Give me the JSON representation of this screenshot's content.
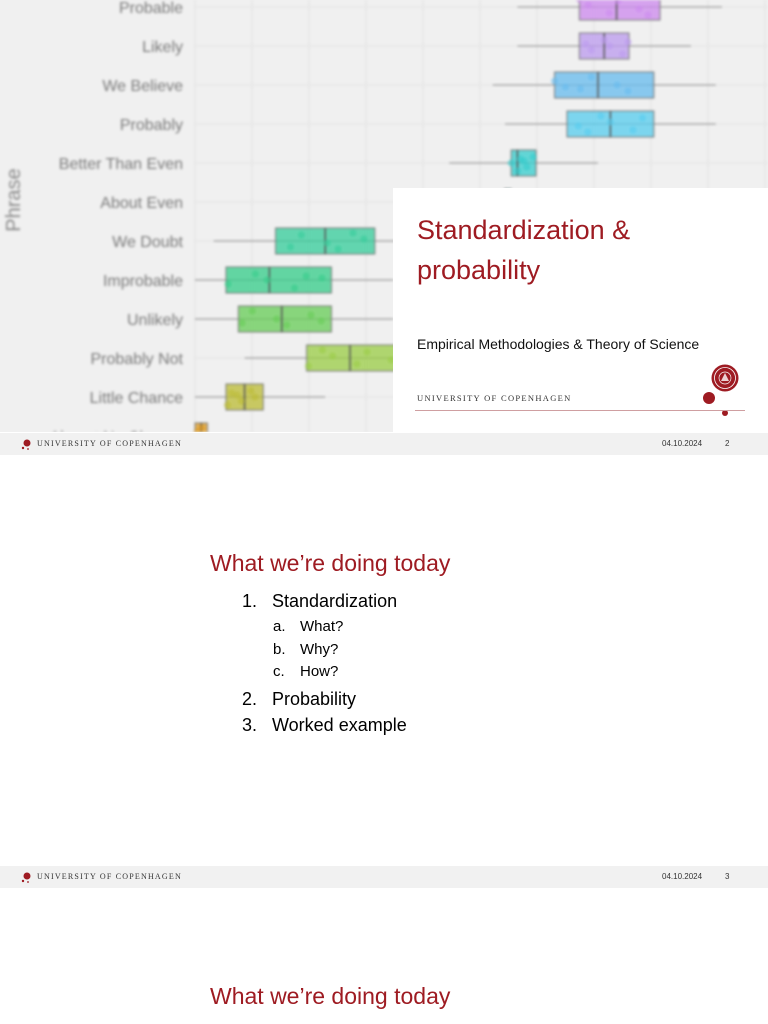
{
  "slides": [
    {
      "title": "Standardization & probability",
      "subtitle": "Empirical Methodologies & Theory of Science",
      "university": "UNIVERSITY OF COPENHAGEN"
    },
    {
      "heading": "What we’re doing today",
      "agenda": [
        {
          "num": "1.",
          "label": "Standardization",
          "sub": [
            {
              "letter": "a.",
              "label": "What?"
            },
            {
              "letter": "b.",
              "label": "Why?"
            },
            {
              "letter": "c.",
              "label": "How?"
            }
          ]
        },
        {
          "num": "2.",
          "label": "Probability"
        },
        {
          "num": "3.",
          "label": "Worked example"
        }
      ]
    },
    {
      "heading": "What we’re doing today"
    }
  ],
  "footers": [
    {
      "university": "UNIVERSITY OF COPENHAGEN",
      "date": "04.10.2024",
      "page": "2"
    },
    {
      "university": "UNIVERSITY OF COPENHAGEN",
      "date": "04.10.2024",
      "page": "3"
    }
  ],
  "colors": {
    "brand_red": "#9e1b22",
    "footer_bg": "#f1f1f1"
  },
  "chart_data": {
    "type": "boxplot",
    "ylabel": "Phrase",
    "categories": [
      "Probable",
      "Likely",
      "We Believe",
      "Probably",
      "Better Than Even",
      "About Even",
      "We Doubt",
      "Improbable",
      "Unlikely",
      "Probably Not",
      "Little Chance",
      "Almost No Chance"
    ],
    "series": [
      {
        "phrase": "Probable",
        "q1": 62,
        "median": 68,
        "q3": 75,
        "color": "#cc88ee"
      },
      {
        "phrase": "Likely",
        "q1": 62,
        "median": 66,
        "q3": 70,
        "color": "#bb99ee"
      },
      {
        "phrase": "We Believe",
        "q1": 58,
        "median": 65,
        "q3": 74,
        "color": "#66bbee"
      },
      {
        "phrase": "Probably",
        "q1": 60,
        "median": 67,
        "q3": 74,
        "color": "#55ccee"
      },
      {
        "phrase": "Better Than Even",
        "q1": 51,
        "median": 52,
        "q3": 55,
        "color": "#33cccc"
      },
      {
        "phrase": "About Even",
        "q1": 50,
        "median": 50,
        "q3": 50,
        "color": "#33cccc"
      },
      {
        "phrase": "We Doubt",
        "q1": 13,
        "median": 21,
        "q3": 29,
        "color": "#33cc99"
      },
      {
        "phrase": "Improbable",
        "q1": 5,
        "median": 12,
        "q3": 22,
        "color": "#33cc88"
      },
      {
        "phrase": "Unlikely",
        "q1": 7,
        "median": 14,
        "q3": 22,
        "color": "#66cc55"
      },
      {
        "phrase": "Probably Not",
        "q1": 18,
        "median": 25,
        "q3": 33,
        "color": "#99cc44"
      },
      {
        "phrase": "Little Chance",
        "q1": 5,
        "median": 8,
        "q3": 11,
        "color": "#bbbb33"
      },
      {
        "phrase": "Almost No Chance",
        "q1": 0,
        "median": 1,
        "q3": 2,
        "color": "#dd9922"
      }
    ]
  }
}
